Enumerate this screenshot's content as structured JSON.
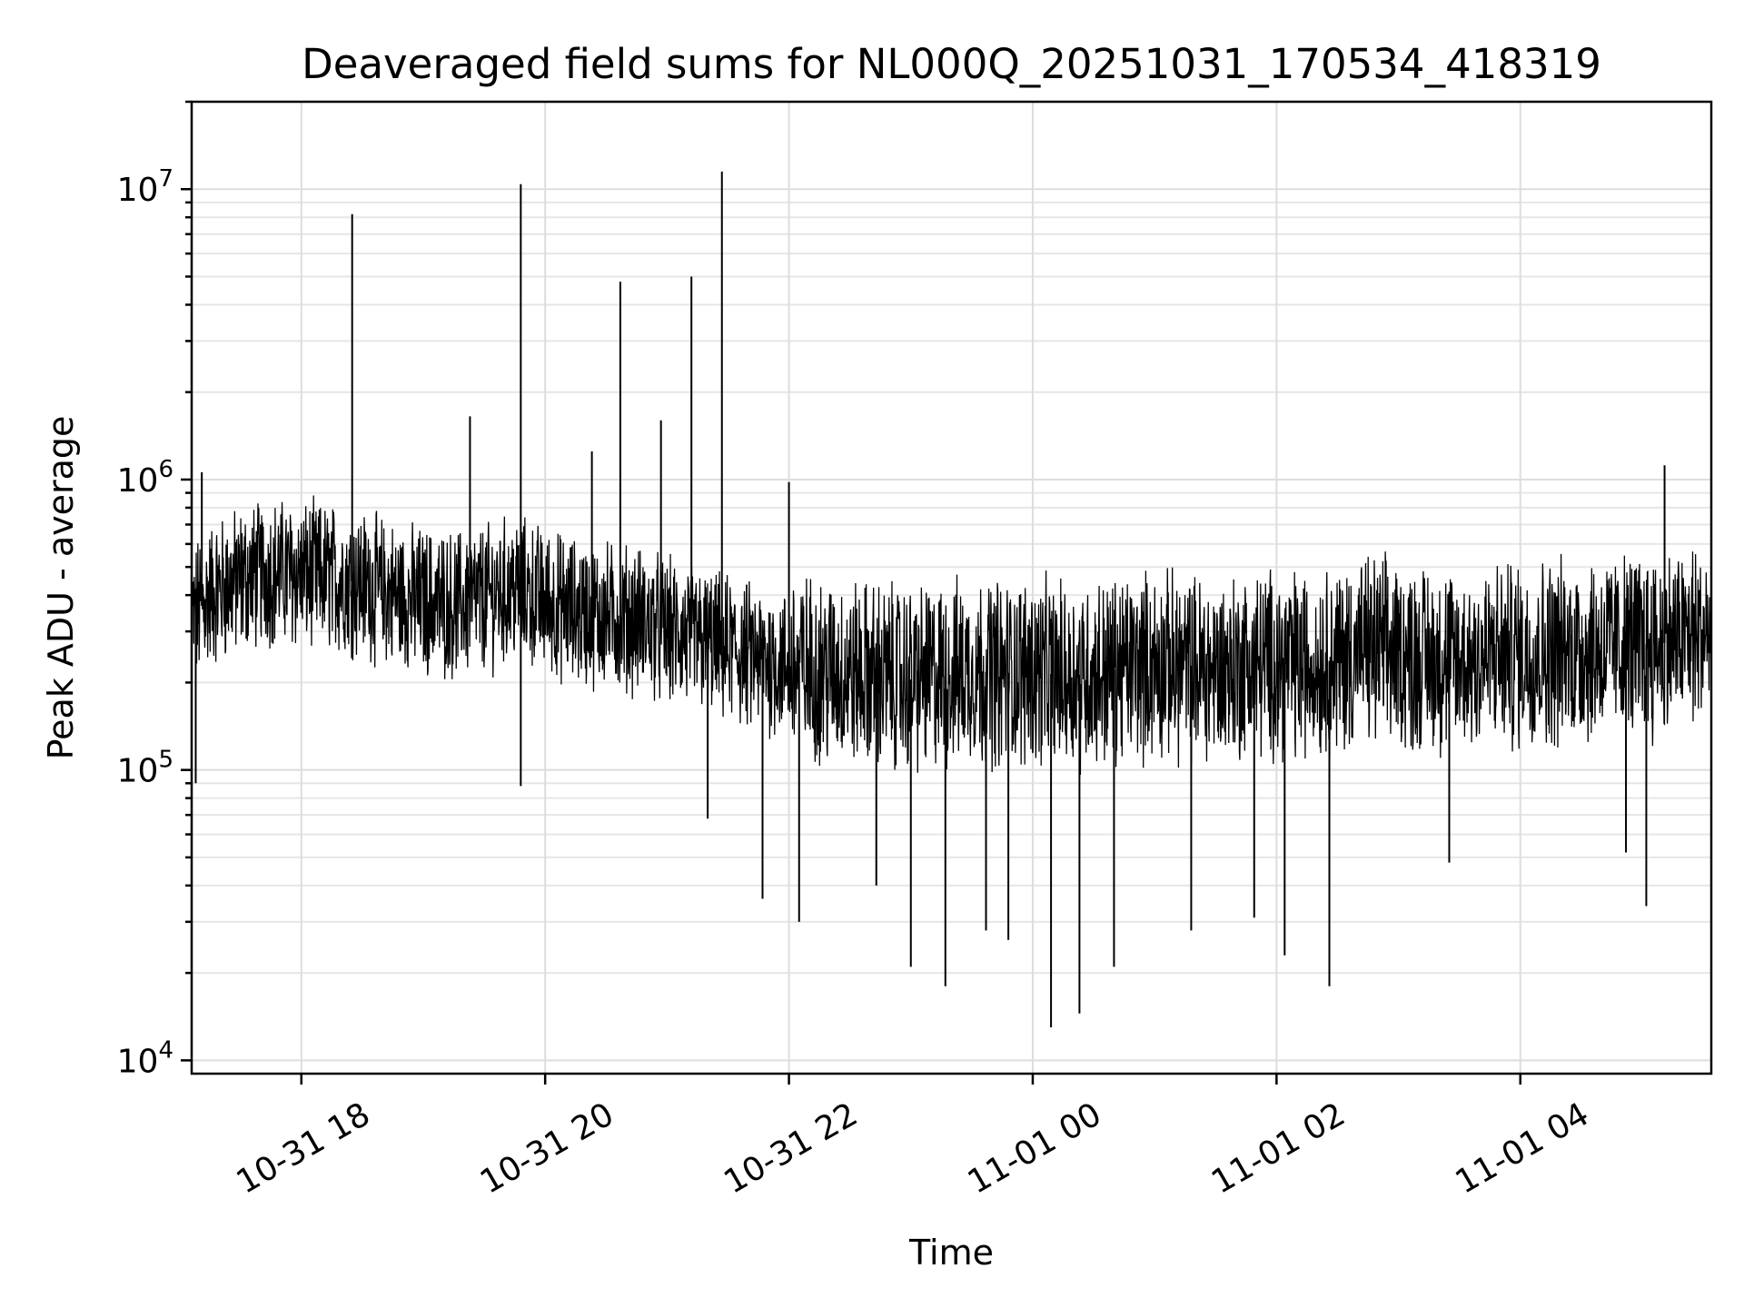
{
  "chart_data": {
    "type": "line",
    "title": "Deaveraged field sums for NL000Q_20251031_170534_418319",
    "xlabel": "Time",
    "ylabel": "Peak ADU - average",
    "yscale": "log",
    "ylim": [
      9000,
      20000000
    ],
    "xlim": [
      "2025-10-31 17:06",
      "2025-11-01 05:34"
    ],
    "grid": true,
    "x_ticks": [
      {
        "value": "2025-10-31 18:00",
        "label": "10-31 18"
      },
      {
        "value": "2025-10-31 20:00",
        "label": "10-31 20"
      },
      {
        "value": "2025-10-31 22:00",
        "label": "10-31 22"
      },
      {
        "value": "2025-11-01 00:00",
        "label": "11-01 00"
      },
      {
        "value": "2025-11-01 02:00",
        "label": "11-01 02"
      },
      {
        "value": "2025-11-01 04:00",
        "label": "11-01 04"
      }
    ],
    "y_ticks": [
      {
        "value": 10000,
        "base": "10",
        "exp": "4"
      },
      {
        "value": 100000,
        "base": "10",
        "exp": "5"
      },
      {
        "value": 1000000,
        "base": "10",
        "exp": "6"
      },
      {
        "value": 10000000,
        "base": "10",
        "exp": "7"
      }
    ],
    "series": [
      {
        "color": "#000000",
        "x": [
          "2025-10-31 17:06",
          "2025-10-31 17:15",
          "2025-10-31 17:30",
          "2025-10-31 17:45",
          "2025-10-31 18:00",
          "2025-10-31 18:15",
          "2025-10-31 18:30",
          "2025-10-31 18:45",
          "2025-10-31 19:00",
          "2025-10-31 19:15",
          "2025-10-31 19:30",
          "2025-10-31 19:45",
          "2025-10-31 20:00",
          "2025-10-31 20:15",
          "2025-10-31 20:30",
          "2025-10-31 20:45",
          "2025-10-31 21:00",
          "2025-10-31 21:15",
          "2025-10-31 21:30",
          "2025-10-31 21:45",
          "2025-10-31 22:00",
          "2025-10-31 22:15",
          "2025-10-31 22:30",
          "2025-10-31 22:45",
          "2025-10-31 23:00",
          "2025-10-31 23:15",
          "2025-10-31 23:30",
          "2025-10-31 23:45",
          "2025-11-01 00:00",
          "2025-11-01 00:15",
          "2025-11-01 00:30",
          "2025-11-01 00:45",
          "2025-11-01 01:00",
          "2025-11-01 01:15",
          "2025-11-01 01:30",
          "2025-11-01 01:45",
          "2025-11-01 02:00",
          "2025-11-01 02:15",
          "2025-11-01 02:30",
          "2025-11-01 02:45",
          "2025-11-01 03:00",
          "2025-11-01 03:15",
          "2025-11-01 03:30",
          "2025-11-01 03:45",
          "2025-11-01 04:00",
          "2025-11-01 04:15",
          "2025-11-01 04:30",
          "2025-11-01 04:45",
          "2025-11-01 05:00",
          "2025-11-01 05:15",
          "2025-11-01 05:34"
        ],
        "values": [
          330000,
          400000,
          450000,
          480000,
          470000,
          460000,
          440000,
          400000,
          380000,
          370000,
          390000,
          420000,
          380000,
          350000,
          340000,
          330000,
          300000,
          280000,
          260000,
          240000,
          230000,
          220000,
          215000,
          210000,
          205000,
          210000,
          220000,
          215000,
          220000,
          210000,
          215000,
          225000,
          230000,
          225000,
          220000,
          230000,
          235000,
          230000,
          240000,
          260000,
          250000,
          240000,
          235000,
          245000,
          250000,
          255000,
          260000,
          265000,
          270000,
          275000,
          300000
        ]
      }
    ],
    "peaks": [
      {
        "x": "2025-10-31 17:11",
        "value": 1060000
      },
      {
        "x": "2025-10-31 18:25",
        "value": 8200000
      },
      {
        "x": "2025-10-31 19:23",
        "value": 1650000
      },
      {
        "x": "2025-10-31 19:48",
        "value": 10400000
      },
      {
        "x": "2025-10-31 20:23",
        "value": 1250000
      },
      {
        "x": "2025-10-31 20:37",
        "value": 4800000
      },
      {
        "x": "2025-10-31 20:57",
        "value": 1600000
      },
      {
        "x": "2025-10-31 21:12",
        "value": 5000000
      },
      {
        "x": "2025-10-31 21:27",
        "value": 11500000
      },
      {
        "x": "2025-10-31 22:00",
        "value": 980000
      },
      {
        "x": "2025-11-01 05:11",
        "value": 1120000
      }
    ],
    "dips": [
      {
        "x": "2025-10-31 17:08",
        "value": 90000
      },
      {
        "x": "2025-10-31 19:48",
        "value": 88000
      },
      {
        "x": "2025-10-31 21:20",
        "value": 68000
      },
      {
        "x": "2025-10-31 21:47",
        "value": 36000
      },
      {
        "x": "2025-10-31 22:05",
        "value": 30000
      },
      {
        "x": "2025-10-31 22:43",
        "value": 40000
      },
      {
        "x": "2025-10-31 23:00",
        "value": 21000
      },
      {
        "x": "2025-10-31 23:17",
        "value": 18000
      },
      {
        "x": "2025-10-31 23:37",
        "value": 28000
      },
      {
        "x": "2025-10-31 23:48",
        "value": 26000
      },
      {
        "x": "2025-11-01 00:09",
        "value": 13000
      },
      {
        "x": "2025-11-01 00:23",
        "value": 14500
      },
      {
        "x": "2025-11-01 00:40",
        "value": 21000
      },
      {
        "x": "2025-11-01 01:18",
        "value": 28000
      },
      {
        "x": "2025-11-01 01:49",
        "value": 31000
      },
      {
        "x": "2025-11-01 02:04",
        "value": 23000
      },
      {
        "x": "2025-11-01 02:26",
        "value": 18000
      },
      {
        "x": "2025-11-01 03:25",
        "value": 48000
      },
      {
        "x": "2025-11-01 04:52",
        "value": 52000
      },
      {
        "x": "2025-11-01 05:02",
        "value": 34000
      }
    ]
  }
}
